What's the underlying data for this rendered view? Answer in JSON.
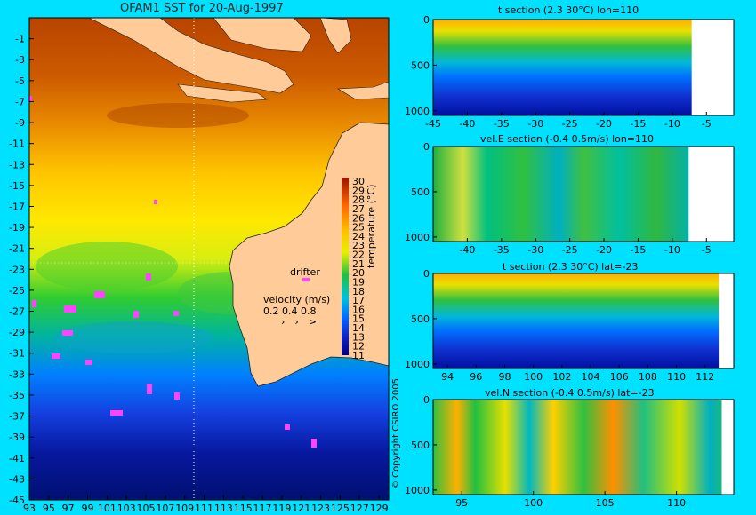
{
  "page": {
    "copyright": "© Copyright CSIRO 2005"
  },
  "map": {
    "title": "OFAM1 SST for 20-Aug-1997",
    "lat_ticks": [
      "-1",
      "-3",
      "-5",
      "-7",
      "-9",
      "-11",
      "-13",
      "-15",
      "-17",
      "-19",
      "-21",
      "-23",
      "-25",
      "-27",
      "-29",
      "-31",
      "-33",
      "-35",
      "-37",
      "-39",
      "-41",
      "-43",
      "-45"
    ],
    "lon_ticks": [
      "93",
      "95",
      "97",
      "99",
      "101",
      "103",
      "105",
      "107",
      "109",
      "111",
      "113",
      "115",
      "117",
      "119",
      "121",
      "123",
      "125",
      "127",
      "129"
    ],
    "drifter_label": "drifter",
    "velocity_label": "velocity (m/s)",
    "velocity_scale": "0.2 0.4 0.8",
    "colorbar": {
      "ticks": [
        "30",
        "29",
        "28",
        "27",
        "26",
        "25",
        "24",
        "23",
        "22",
        "21",
        "20",
        "19",
        "18",
        "17",
        "16",
        "15",
        "14",
        "13",
        "12",
        "11"
      ],
      "label": "temperature (°C)"
    },
    "colors": {
      "ocean_warm": "#b34a00",
      "ocean_cool": "#001a80",
      "land": "#ffcc99",
      "drifter": "#ff44ff"
    }
  },
  "panels": [
    {
      "title": "t section (2.3      30°C) lon=110",
      "xticks": [
        "-45",
        "-40",
        "-35",
        "-30",
        "-25",
        "-20",
        "-15",
        "-10",
        "-5"
      ],
      "yticks": [
        "0",
        "500",
        "1000"
      ]
    },
    {
      "title": "vel.E section (-0.4      0.5m/s) lon=110",
      "xticks": [
        "-40",
        "-35",
        "-30",
        "-25",
        "-20",
        "-15",
        "-10",
        "-5"
      ],
      "yticks": [
        "0",
        "500",
        "1000"
      ]
    },
    {
      "title": "t section (2.3      30°C) lat=-23",
      "xticks": [
        "94",
        "96",
        "98",
        "100",
        "102",
        "104",
        "106",
        "108",
        "110",
        "112"
      ],
      "yticks": [
        "0",
        "500",
        "1000"
      ]
    },
    {
      "title": "vel.N section (-0.4      0.5m/s) lat=-23",
      "xticks": [
        "95",
        "100",
        "105",
        "110"
      ],
      "yticks": [
        "0",
        "500",
        "1000"
      ]
    }
  ],
  "chart_data": [
    {
      "type": "heatmap",
      "title": "OFAM1 SST for 20-Aug-1997",
      "xlabel": "",
      "ylabel": "",
      "xlim": [
        93,
        130
      ],
      "ylim": [
        -45,
        1
      ],
      "colorbar_range": [
        11,
        30
      ],
      "colorbar_label": "temperature (°C)"
    },
    {
      "type": "heatmap",
      "title": "t section (2.3      30°C) lon=110",
      "xlim": [
        -45,
        -1
      ],
      "ylim": [
        1050,
        0
      ],
      "value_range": [
        2.3,
        30
      ]
    },
    {
      "type": "heatmap",
      "title": "vel.E section (-0.4      0.5m/s) lon=110",
      "xlim": [
        -45,
        -1
      ],
      "ylim": [
        1050,
        0
      ],
      "value_range": [
        -0.4,
        0.5
      ]
    },
    {
      "type": "heatmap",
      "title": "t section (2.3      30°C) lat=-23",
      "xlim": [
        93,
        114
      ],
      "ylim": [
        1050,
        0
      ],
      "value_range": [
        2.3,
        30
      ]
    },
    {
      "type": "heatmap",
      "title": "vel.N section (-0.4      0.5m/s) lat=-23",
      "xlim": [
        93,
        114
      ],
      "ylim": [
        1050,
        0
      ],
      "value_range": [
        -0.4,
        0.5
      ]
    }
  ]
}
